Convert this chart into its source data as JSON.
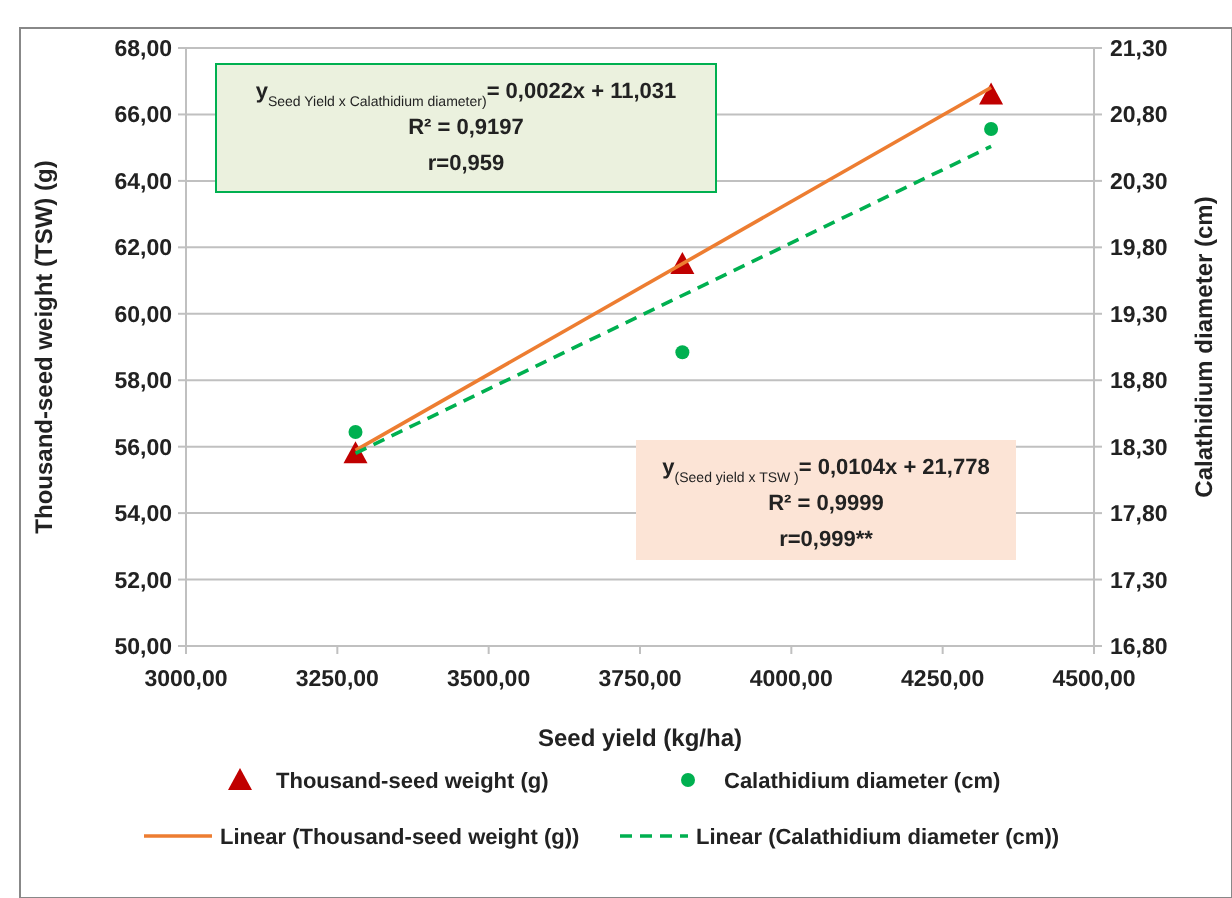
{
  "chart_data": {
    "type": "scatter",
    "xlabel": "Seed yield (kg/ha)",
    "ylabel": "Thousand-seed weight (TSW) (g)",
    "y2label": "Calathidium diameter (cm)",
    "xlim": [
      3000,
      4500
    ],
    "xticks": [
      {
        "value": 3000,
        "label": "3000,00"
      },
      {
        "value": 3250,
        "label": "3250,00"
      },
      {
        "value": 3500,
        "label": "3500,00"
      },
      {
        "value": 3750,
        "label": "3750,00"
      },
      {
        "value": 4000,
        "label": "4000,00"
      },
      {
        "value": 4250,
        "label": "4250,00"
      },
      {
        "value": 4500,
        "label": "4500,00"
      }
    ],
    "ylim": [
      50,
      68
    ],
    "yticks": [
      {
        "value": 50,
        "label": "50,00"
      },
      {
        "value": 52,
        "label": "52,00"
      },
      {
        "value": 54,
        "label": "54,00"
      },
      {
        "value": 56,
        "label": "56,00"
      },
      {
        "value": 58,
        "label": "58,00"
      },
      {
        "value": 60,
        "label": "60,00"
      },
      {
        "value": 62,
        "label": "62,00"
      },
      {
        "value": 64,
        "label": "64,00"
      },
      {
        "value": 66,
        "label": "66,00"
      },
      {
        "value": 68,
        "label": "68,00"
      }
    ],
    "y2lim": [
      16.8,
      21.3
    ],
    "y2ticks": [
      {
        "value": 16.8,
        "label": "16,80"
      },
      {
        "value": 17.3,
        "label": "17,30"
      },
      {
        "value": 17.8,
        "label": "17,80"
      },
      {
        "value": 18.3,
        "label": "18,30"
      },
      {
        "value": 18.8,
        "label": "18,80"
      },
      {
        "value": 19.3,
        "label": "19,30"
      },
      {
        "value": 19.8,
        "label": "19,80"
      },
      {
        "value": 20.3,
        "label": "20,30"
      },
      {
        "value": 20.8,
        "label": "20,80"
      },
      {
        "value": 21.3,
        "label": "21,30"
      }
    ],
    "grid": "y",
    "legend": "bottom",
    "series": [
      {
        "name": "Thousand-seed weight (g)",
        "marker": "triangle",
        "color": "#c00000",
        "x": [
          3280,
          3820,
          4330
        ],
        "values": [
          55.8,
          61.5,
          66.6
        ]
      },
      {
        "name": "Calathidium diameter (cm)",
        "marker": "circle",
        "color": "#00b050",
        "axis": "y2",
        "x": [
          3280,
          3820,
          4330
        ],
        "values": [
          18.41,
          19.01,
          20.69
        ]
      },
      {
        "name": "Linear (Thousand-seed weight (g))",
        "type": "line",
        "marker": "none",
        "line_style": "solid",
        "color": "#ed7d31",
        "x": [
          3280,
          4330
        ],
        "values": [
          55.89,
          66.81
        ]
      },
      {
        "name": "Linear (Calathidium diameter (cm))",
        "type": "line",
        "marker": "none",
        "line_style": "dashed",
        "color": "#00b050",
        "axis": "y2",
        "x": [
          3280,
          4330
        ],
        "values": [
          18.25,
          20.56
        ]
      }
    ],
    "annotations": [
      "y$_{Seed Yield x Calathidium diameter)}$= 0,0022x + 11,031",
      "R² = 0,9197",
      "r=0,959",
      "y$_{(Seed yield x TSW )}$= 0,0104x + 21,778",
      "R² = 0,9999",
      "r=0,999**"
    ]
  }
}
